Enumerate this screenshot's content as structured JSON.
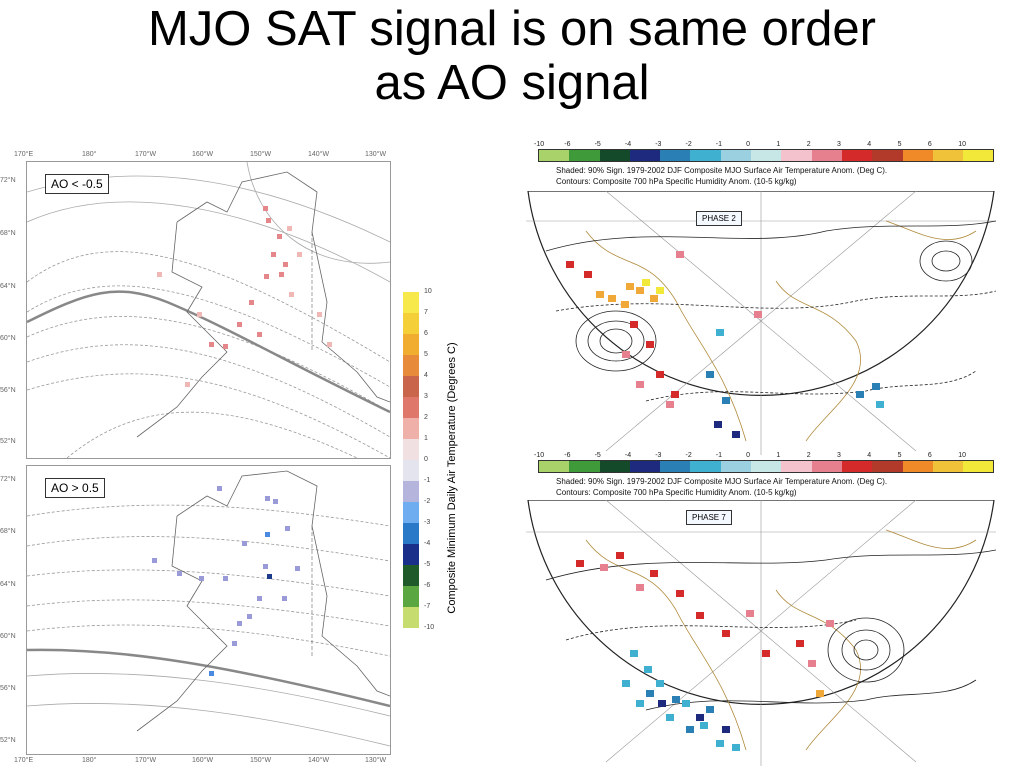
{
  "title": {
    "line1": "MJO SAT signal is on same order",
    "line2": "as AO signal"
  },
  "left_figure": {
    "lon_labels": [
      "170°E",
      "180°",
      "170°W",
      "160°W",
      "150°W",
      "140°W",
      "130°W"
    ],
    "top_panel_lat_labels": [
      "72°N",
      "68°N",
      "64°N",
      "60°N",
      "56°N",
      "52°N"
    ],
    "bottom_panel_lat_labels": [
      "72°N",
      "68°N",
      "64°N",
      "60°N",
      "56°N",
      "52°N"
    ],
    "top_panel_label": "AO < -0.5",
    "bottom_panel_label": "AO > 0.5",
    "colorbar_title": "Composite Minimum Daily Air Temperature (Degrees C)",
    "colorbar_ticks": [
      "10",
      "7",
      "6",
      "5",
      "4",
      "3",
      "2",
      "1",
      "0",
      "-1",
      "-2",
      "-3",
      "-4",
      "-5",
      "-6",
      "-7",
      "-10"
    ],
    "colorbar_colors": [
      "#f7e94c",
      "#f5cf38",
      "#f0ad30",
      "#e78a3a",
      "#c9654a",
      "#e0776b",
      "#eeb0a8",
      "#f0e0e2",
      "#e4e4ee",
      "#b4b4dc",
      "#6eaef0",
      "#2a78c8",
      "#1a2f8a",
      "#1e5a2a",
      "#5aa640",
      "#c7dc6e"
    ]
  },
  "right_figure": {
    "scale_ticks": [
      "-10",
      "-6",
      "-5",
      "-4",
      "-3",
      "-2",
      "-1",
      "0",
      "1",
      "2",
      "3",
      "4",
      "5",
      "6",
      "10"
    ],
    "scale_colors": [
      "#a9d36a",
      "#3f9a3a",
      "#144a2a",
      "#1e2a7e",
      "#2a7fb4",
      "#3fb0d0",
      "#9ad0e0",
      "#c7e6e6",
      "#f3c2cc",
      "#e6808e",
      "#d42a2a",
      "#b23a2a",
      "#f08a28",
      "#f0c23a",
      "#f2e83a"
    ],
    "panels": [
      {
        "caption1": "Shaded: 90% Sign. 1979-2002 DJF Composite MJO Surface Air Temperature Anom. (Deg C).",
        "caption2": "Contours: Composite 700 hPa Specific Humidity Anom. (10-5 kg/kg)",
        "phase": "PHASE 2"
      },
      {
        "caption1": "Shaded: 90% Sign. 1979-2002 DJF Composite MJO Surface Air Temperature Anom. (Deg C).",
        "caption2": "Contours: Composite 700 hPa Specific Humidity Anom. (10-5 kg/kg)",
        "phase": "PHASE 7"
      }
    ]
  }
}
